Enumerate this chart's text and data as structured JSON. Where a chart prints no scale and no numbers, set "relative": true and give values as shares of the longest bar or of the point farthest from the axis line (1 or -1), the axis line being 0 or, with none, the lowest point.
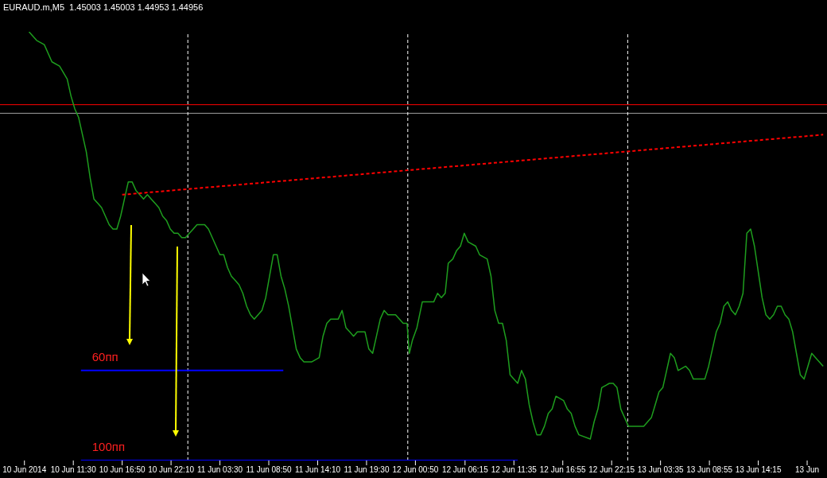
{
  "chart_data": {
    "type": "line",
    "title": "EURAUD.m,M5  1.45003 1.45003 1.44953 1.44956",
    "relative": true,
    "xlim": [
      "2014-06-10T03:30",
      "2014-06-13T21:45"
    ],
    "xticks": [
      {
        "value": "2014-06-10T06:10",
        "label": "10 Jun 2014"
      },
      {
        "value": "2014-06-10T11:30",
        "label": "10 Jun 11:30"
      },
      {
        "value": "2014-06-10T16:50",
        "label": "10 Jun 16:50"
      },
      {
        "value": "2014-06-10T22:10",
        "label": "10 Jun 22:10"
      },
      {
        "value": "2014-06-11T03:30",
        "label": "11 Jun 03:30"
      },
      {
        "value": "2014-06-11T08:50",
        "label": "11 Jun 08:50"
      },
      {
        "value": "2014-06-11T14:10",
        "label": "11 Jun 14:10"
      },
      {
        "value": "2014-06-11T19:30",
        "label": "11 Jun 19:30"
      },
      {
        "value": "2014-06-12T00:50",
        "label": "12 Jun 00:50"
      },
      {
        "value": "2014-06-12T06:15",
        "label": "12 Jun 06:15"
      },
      {
        "value": "2014-06-12T11:35",
        "label": "12 Jun 11:35"
      },
      {
        "value": "2014-06-12T16:55",
        "label": "12 Jun 16:55"
      },
      {
        "value": "2014-06-12T22:15",
        "label": "12 Jun 22:15"
      },
      {
        "value": "2014-06-13T03:35",
        "label": "13 Jun 03:35"
      },
      {
        "value": "2014-06-13T08:55",
        "label": "13 Jun 08:55"
      },
      {
        "value": "2014-06-13T14:15",
        "label": "13 Jun 14:15"
      },
      {
        "value": "2014-06-13T19:35",
        "label": "13 Jun"
      }
    ],
    "series": [
      {
        "color": "#1e9e1e",
        "x": [
          "2014-06-10T06:40",
          "2014-06-10T07:30",
          "2014-06-10T08:20",
          "2014-06-10T09:10",
          "2014-06-10T10:00",
          "2014-06-10T10:50",
          "2014-06-10T11:15",
          "2014-06-10T11:40",
          "2014-06-10T12:05",
          "2014-06-10T12:30",
          "2014-06-10T12:55",
          "2014-06-10T13:20",
          "2014-06-10T13:45",
          "2014-06-10T14:10",
          "2014-06-10T14:35",
          "2014-06-10T15:00",
          "2014-06-10T15:25",
          "2014-06-10T15:50",
          "2014-06-10T16:15",
          "2014-06-10T16:40",
          "2014-06-10T17:05",
          "2014-06-10T17:30",
          "2014-06-10T17:55",
          "2014-06-10T18:20",
          "2014-06-10T18:45",
          "2014-06-10T19:10",
          "2014-06-10T19:35",
          "2014-06-10T20:00",
          "2014-06-10T20:25",
          "2014-06-10T20:50",
          "2014-06-10T21:15",
          "2014-06-10T21:40",
          "2014-06-10T22:05",
          "2014-06-10T22:30",
          "2014-06-10T22:55",
          "2014-06-10T23:20",
          "2014-06-10T23:45",
          "2014-06-11T00:10",
          "2014-06-11T00:35",
          "2014-06-11T01:00",
          "2014-06-11T01:25",
          "2014-06-11T01:50",
          "2014-06-11T02:15",
          "2014-06-11T02:40",
          "2014-06-11T03:05",
          "2014-06-11T03:30",
          "2014-06-11T03:55",
          "2014-06-11T04:20",
          "2014-06-11T04:45",
          "2014-06-11T05:10",
          "2014-06-11T05:35",
          "2014-06-11T06:00",
          "2014-06-11T06:25",
          "2014-06-11T06:50",
          "2014-06-11T07:15",
          "2014-06-11T07:40",
          "2014-06-11T08:05",
          "2014-06-11T08:30",
          "2014-06-11T08:55",
          "2014-06-11T09:20",
          "2014-06-11T09:45",
          "2014-06-11T10:10",
          "2014-06-11T10:35",
          "2014-06-11T11:00",
          "2014-06-11T11:25",
          "2014-06-11T11:50",
          "2014-06-11T12:15",
          "2014-06-11T12:40",
          "2014-06-11T13:30",
          "2014-06-11T14:20",
          "2014-06-11T14:45",
          "2014-06-11T15:10",
          "2014-06-11T15:35",
          "2014-06-11T16:00",
          "2014-06-11T16:25",
          "2014-06-11T16:50",
          "2014-06-11T17:15",
          "2014-06-11T17:40",
          "2014-06-11T18:05",
          "2014-06-11T18:30",
          "2014-06-11T19:20",
          "2014-06-11T19:45",
          "2014-06-11T20:10",
          "2014-06-11T20:35",
          "2014-06-11T21:00",
          "2014-06-11T21:25",
          "2014-06-11T21:50",
          "2014-06-11T22:40",
          "2014-06-11T23:30",
          "2014-06-11T23:55",
          "2014-06-12T00:10",
          "2014-06-12T00:30",
          "2014-06-12T01:00",
          "2014-06-12T01:35",
          "2014-06-12T02:00",
          "2014-06-12T02:50",
          "2014-06-12T03:15",
          "2014-06-12T03:40",
          "2014-06-12T04:05",
          "2014-06-12T04:25",
          "2014-06-12T04:55",
          "2014-06-12T05:20",
          "2014-06-12T05:45",
          "2014-06-12T06:10",
          "2014-06-12T06:35",
          "2014-06-12T07:25",
          "2014-06-12T07:50",
          "2014-06-12T08:40",
          "2014-06-12T09:05",
          "2014-06-12T09:30",
          "2014-06-12T09:55",
          "2014-06-12T10:20",
          "2014-06-12T10:45",
          "2014-06-12T11:10",
          "2014-06-12T12:00",
          "2014-06-12T12:25",
          "2014-06-12T12:50",
          "2014-06-12T13:15",
          "2014-06-12T13:40",
          "2014-06-12T14:05",
          "2014-06-12T14:30",
          "2014-06-12T14:55",
          "2014-06-12T15:20",
          "2014-06-12T15:45",
          "2014-06-12T16:10",
          "2014-06-12T17:00",
          "2014-06-12T17:25",
          "2014-06-12T17:50",
          "2014-06-12T18:15",
          "2014-06-12T18:40",
          "2014-06-12T19:55",
          "2014-06-12T20:20",
          "2014-06-12T20:45",
          "2014-06-12T21:10",
          "2014-06-12T22:00",
          "2014-06-12T22:25",
          "2014-06-12T22:50",
          "2014-06-12T23:15",
          "2014-06-12T23:40",
          "2014-06-13T00:05",
          "2014-06-13T01:45",
          "2014-06-13T02:35",
          "2014-06-13T03:00",
          "2014-06-13T03:25",
          "2014-06-13T03:50",
          "2014-06-13T04:15",
          "2014-06-13T04:40",
          "2014-06-13T05:05",
          "2014-06-13T05:30",
          "2014-06-13T06:20",
          "2014-06-13T06:45",
          "2014-06-13T07:10",
          "2014-06-13T08:25",
          "2014-06-13T08:50",
          "2014-06-13T09:15",
          "2014-06-13T09:40",
          "2014-06-13T10:05",
          "2014-06-13T10:30",
          "2014-06-13T10:55",
          "2014-06-13T11:20",
          "2014-06-13T11:45",
          "2014-06-13T12:10",
          "2014-06-13T12:35",
          "2014-06-13T13:00",
          "2014-06-13T13:25",
          "2014-06-13T13:50",
          "2014-06-13T14:15",
          "2014-06-13T14:40",
          "2014-06-13T15:05",
          "2014-06-13T15:30",
          "2014-06-13T15:55",
          "2014-06-13T16:20",
          "2014-06-13T16:45",
          "2014-06-13T17:10",
          "2014-06-13T17:35",
          "2014-06-13T18:00",
          "2014-06-13T18:25",
          "2014-06-13T18:50",
          "2014-06-13T19:15",
          "2014-06-13T19:40",
          "2014-06-13T20:05",
          "2014-06-13T20:30",
          "2014-06-13T21:20"
        ],
        "values": [
          1,
          0.98,
          0.97,
          0.93,
          0.92,
          0.89,
          0.85,
          0.82,
          0.8,
          0.76,
          0.72,
          0.66,
          0.61,
          0.6,
          0.59,
          0.57,
          0.55,
          0.54,
          0.54,
          0.57,
          0.61,
          0.65,
          0.65,
          0.63,
          0.62,
          0.61,
          0.62,
          0.61,
          0.6,
          0.59,
          0.57,
          0.56,
          0.54,
          0.53,
          0.53,
          0.52,
          0.52,
          0.53,
          0.54,
          0.55,
          0.55,
          0.55,
          0.54,
          0.52,
          0.5,
          0.48,
          0.48,
          0.45,
          0.43,
          0.42,
          0.41,
          0.39,
          0.36,
          0.34,
          0.33,
          0.34,
          0.35,
          0.38,
          0.43,
          0.48,
          0.48,
          0.43,
          0.4,
          0.36,
          0.31,
          0.26,
          0.24,
          0.23,
          0.23,
          0.24,
          0.29,
          0.32,
          0.33,
          0.33,
          0.33,
          0.35,
          0.31,
          0.3,
          0.29,
          0.3,
          0.3,
          0.26,
          0.25,
          0.29,
          0.33,
          0.35,
          0.34,
          0.34,
          0.32,
          0.32,
          0.25,
          0.28,
          0.31,
          0.37,
          0.37,
          0.37,
          0.39,
          0.38,
          0.39,
          0.46,
          0.47,
          0.49,
          0.5,
          0.53,
          0.51,
          0.5,
          0.48,
          0.47,
          0.43,
          0.35,
          0.32,
          0.32,
          0.28,
          0.2,
          0.18,
          0.21,
          0.19,
          0.13,
          0.09,
          0.06,
          0.06,
          0.08,
          0.11,
          0.12,
          0.15,
          0.14,
          0.12,
          0.11,
          0.08,
          0.06,
          0.05,
          0.09,
          0.12,
          0.17,
          0.18,
          0.18,
          0.17,
          0.12,
          0.1,
          0.08,
          0.08,
          0.1,
          0.13,
          0.16,
          0.17,
          0.21,
          0.25,
          0.24,
          0.21,
          0.22,
          0.21,
          0.19,
          0.19,
          0.22,
          0.26,
          0.3,
          0.32,
          0.36,
          0.37,
          0.35,
          0.34,
          0.36,
          0.39,
          0.53,
          0.54,
          0.5,
          0.44,
          0.38,
          0.34,
          0.33,
          0.34,
          0.36,
          0.36,
          0.34,
          0.33,
          0.3,
          0.25,
          0.2,
          0.19,
          0.22,
          0.25,
          0.24,
          0.22
        ]
      },
      {
        "name": "60пп",
        "color": "#0000ff",
        "x": [
          "2014-06-10T12:20",
          "2014-06-11T10:25"
        ],
        "values": [
          0.21,
          0.21
        ]
      },
      {
        "name": "100пп",
        "color": "#0000ff",
        "x": [
          "2014-06-10T12:20",
          "2014-06-12T12:00"
        ],
        "values": [
          0,
          0
        ]
      },
      {
        "color": "#ff0000",
        "line_style": "dashed",
        "x": [
          "2014-06-10T16:50",
          "2014-06-13T21:20"
        ],
        "values": [
          0.62,
          0.76
        ]
      }
    ],
    "ref_lines": [
      {
        "axis": "y",
        "value": 0.83,
        "color": "#ff0000"
      },
      {
        "axis": "y",
        "value": 0.81,
        "color": "#a0a0a0"
      },
      {
        "axis": "x",
        "value": "2014-06-11T00:00",
        "color": "#ffffff",
        "line_style": "dashed"
      },
      {
        "axis": "x",
        "value": "2014-06-12T00:00",
        "color": "#ffffff",
        "line_style": "dashed"
      },
      {
        "axis": "x",
        "value": "2014-06-13T00:00",
        "color": "#ffffff",
        "line_style": "dashed"
      }
    ]
  }
}
